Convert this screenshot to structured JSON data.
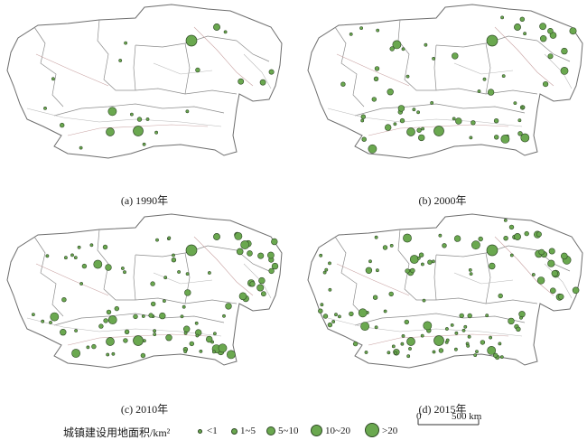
{
  "panels": [
    {
      "caption": "(a) 1990年",
      "density": "sparse"
    },
    {
      "caption": "(b) 2000年",
      "density": "medium"
    },
    {
      "caption": "(c) 2010年",
      "density": "dense"
    },
    {
      "caption": "(d) 2015年",
      "density": "denser"
    }
  ],
  "legend": {
    "title": "城镇建设用地面积/km²",
    "classes": [
      {
        "label": "<1"
      },
      {
        "label": "1~5"
      },
      {
        "label": "5~10"
      },
      {
        "label": "10~20"
      },
      {
        "label": ">20"
      }
    ]
  },
  "scale_bar": {
    "start": "0",
    "end": "500 km"
  },
  "colors": {
    "symbol_fill": "#6aa84f",
    "symbol_stroke": "#2f4a26",
    "boundary": "#8c8c8c",
    "river": "#b8b8b8",
    "road": "#c9a3a3"
  }
}
